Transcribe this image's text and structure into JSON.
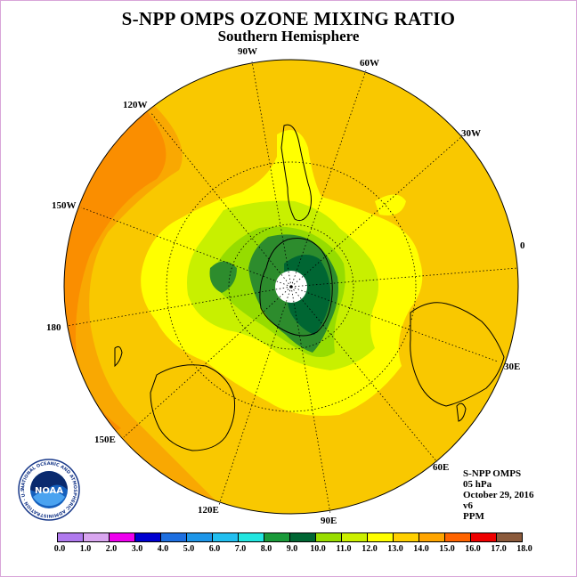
{
  "title": "S-NPP OMPS OZONE MIXING RATIO",
  "subtitle": "Southern Hemisphere",
  "longitude_labels": {
    "lon_90w": "90W",
    "lon_60w": "60W",
    "lon_30w": "30W",
    "lon_0": "0",
    "lon_30e": "30E",
    "lon_60e": "60E",
    "lon_90e": "90E",
    "lon_120e": "120E",
    "lon_150e": "150E",
    "lon_180": "180",
    "lon_150w": "150W",
    "lon_120w": "120W"
  },
  "info": {
    "instrument": "S-NPP OMPS",
    "level": "05 hPa",
    "date": "October 29, 2016",
    "version": "v6",
    "units": "PPM"
  },
  "logo": {
    "text": "NOAA",
    "ring_text": "NATIONAL OCEANIC AND ATMOSPHERIC ADMINISTRATION · U.S. DEPARTMENT OF COMMERCE"
  },
  "colorbar": {
    "tick_labels": [
      "0.0",
      "1.0",
      "2.0",
      "3.0",
      "4.0",
      "5.0",
      "6.0",
      "7.0",
      "8.0",
      "9.0",
      "10.0",
      "11.0",
      "12.0",
      "13.0",
      "14.0",
      "15.0",
      "16.0",
      "17.0",
      "18.0"
    ],
    "colors": [
      "#b07aee",
      "#d9a6f0",
      "#ee00ee",
      "#0000d0",
      "#1e6fe0",
      "#1e96e8",
      "#22bff0",
      "#22e6e0",
      "#1a9a3a",
      "#006633",
      "#99dd00",
      "#ccf000",
      "#ffff00",
      "#ffd000",
      "#ffa500",
      "#ff6400",
      "#ee0000",
      "#8b5a3c"
    ]
  },
  "field_colors": {
    "ppm_15_16": "#fa8e00",
    "ppm_14_15": "#f9a802",
    "ppm_13_14": "#f9c800",
    "ppm_12_13": "#ffff00",
    "ppm_11_12": "#c8f000",
    "ppm_10_11": "#96dc00",
    "ppm_9_10": "#2d8c2d",
    "ppm_8_9": "#006633",
    "no_data": "#ffffff"
  }
}
